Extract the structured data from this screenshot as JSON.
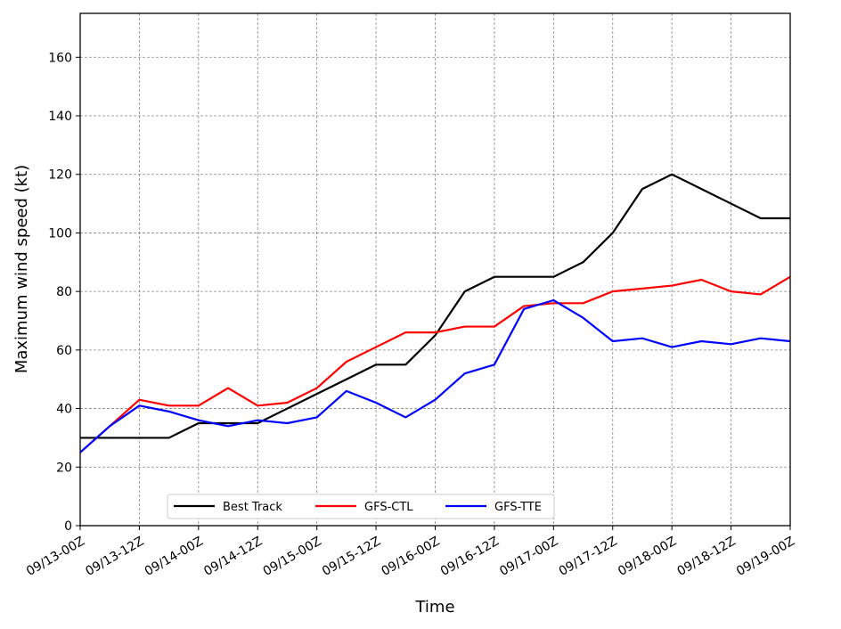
{
  "chart_data": {
    "type": "line",
    "title": "",
    "xlabel": "Time",
    "ylabel": "Maximum wind speed (kt)",
    "ylim": [
      0,
      175
    ],
    "yticks": [
      0,
      20,
      40,
      60,
      80,
      100,
      120,
      140,
      160
    ],
    "xlim": [
      0,
      24
    ],
    "xticks": [
      0,
      2,
      4,
      6,
      8,
      10,
      12,
      14,
      16,
      18,
      20,
      22,
      24
    ],
    "xtick_labels": [
      "09/13-00Z",
      "09/13-12Z",
      "09/14-00Z",
      "09/14-12Z",
      "09/15-00Z",
      "09/15-12Z",
      "09/16-00Z",
      "09/16-12Z",
      "09/17-00Z",
      "09/17-12Z",
      "09/18-00Z",
      "09/18-12Z",
      "09/19-00Z"
    ],
    "x": [
      0,
      1,
      2,
      3,
      4,
      5,
      6,
      7,
      8,
      9,
      10,
      11,
      12,
      13,
      14,
      15,
      16,
      17,
      18,
      19,
      20,
      21,
      22,
      23,
      24
    ],
    "grid": true,
    "legend_position": "lower-left",
    "series": [
      {
        "name": "Best Track",
        "color": "#000000",
        "values": [
          30,
          30,
          30,
          30,
          35,
          35,
          35,
          40,
          45,
          50,
          55,
          55,
          65,
          80,
          85,
          85,
          85,
          90,
          100,
          115,
          120,
          115,
          110,
          105,
          105
        ]
      },
      {
        "name": "GFS-CTL",
        "color": "#ff0000",
        "values": [
          25,
          34,
          43,
          41,
          41,
          47,
          41,
          42,
          47,
          56,
          61,
          66,
          66,
          68,
          68,
          75,
          76,
          76,
          80,
          81,
          82,
          84,
          80,
          79,
          85
        ]
      },
      {
        "name": "GFS-TTE",
        "color": "#0000ff",
        "values": [
          25,
          34,
          41,
          39,
          36,
          34,
          36,
          35,
          37,
          46,
          42,
          37,
          43,
          52,
          55,
          74,
          77,
          71,
          63,
          64,
          61,
          63,
          62,
          64,
          63
        ]
      }
    ]
  }
}
